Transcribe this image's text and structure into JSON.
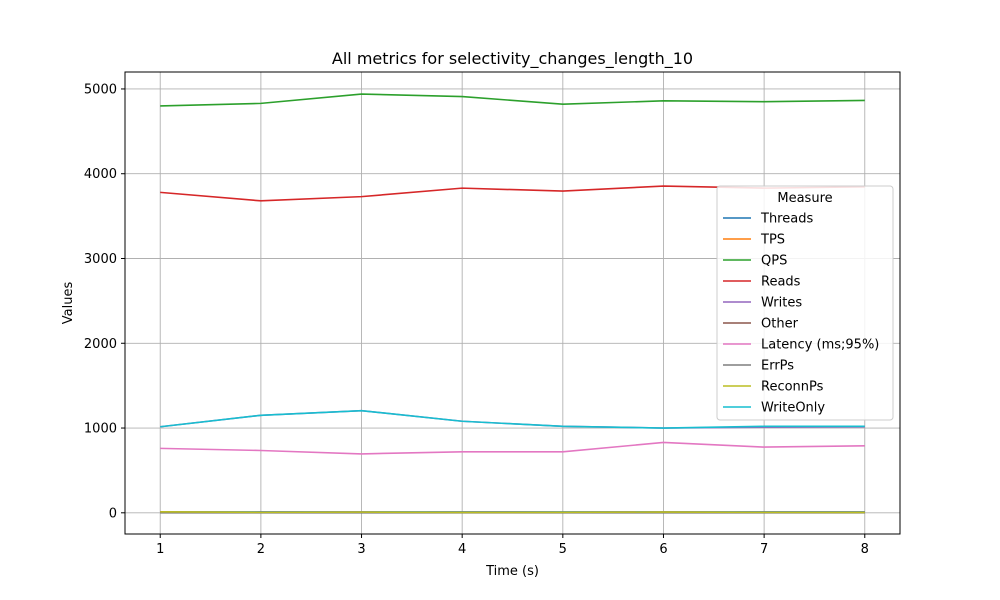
{
  "chart_data": {
    "type": "line",
    "title": "All metrics for selectivity_changes_length_10",
    "xlabel": "Time (s)",
    "ylabel": "Values",
    "x": [
      1,
      2,
      3,
      4,
      5,
      6,
      7,
      8
    ],
    "xticks": [
      "1",
      "2",
      "3",
      "4",
      "5",
      "6",
      "7",
      "8"
    ],
    "yticks": [
      "0",
      "1000",
      "2000",
      "3000",
      "4000",
      "5000"
    ],
    "ylim": [
      -250,
      5200
    ],
    "xlim": [
      0.65,
      8.35
    ],
    "grid": true,
    "legend": {
      "title": "Measure",
      "placement": "right"
    },
    "series": [
      {
        "name": "Threads",
        "color": "#1f77b4",
        "values": [
          10,
          10,
          10,
          10,
          10,
          10,
          10,
          10
        ]
      },
      {
        "name": "TPS",
        "color": "#ff7f0e",
        "values": [
          8,
          6,
          7,
          5,
          6,
          7,
          6,
          5
        ]
      },
      {
        "name": "QPS",
        "color": "#2ca02c",
        "values": [
          4800,
          4830,
          4940,
          4910,
          4820,
          4860,
          4850,
          4865
        ]
      },
      {
        "name": "Reads",
        "color": "#d62728",
        "values": [
          3780,
          3680,
          3730,
          3830,
          3795,
          3855,
          3830,
          3845
        ]
      },
      {
        "name": "Writes",
        "color": "#9467bd",
        "values": [
          1015,
          1150,
          1205,
          1080,
          1020,
          1000,
          1010,
          1015
        ]
      },
      {
        "name": "Other",
        "color": "#8c564b",
        "values": [
          5,
          4,
          5,
          4,
          4,
          5,
          4,
          4
        ]
      },
      {
        "name": "Latency (ms;95%)",
        "color": "#e377c2",
        "values": [
          760,
          735,
          695,
          720,
          720,
          830,
          775,
          790
        ]
      },
      {
        "name": "ErrPs",
        "color": "#7f7f7f",
        "values": [
          0,
          0,
          0,
          0,
          0,
          0,
          0,
          0
        ]
      },
      {
        "name": "ReconnPs",
        "color": "#bcbd22",
        "values": [
          12,
          5,
          8,
          4,
          6,
          9,
          5,
          4
        ]
      },
      {
        "name": "WriteOnly",
        "color": "#17becf",
        "values": [
          1015,
          1150,
          1205,
          1080,
          1020,
          1000,
          1020,
          1020
        ]
      }
    ]
  }
}
